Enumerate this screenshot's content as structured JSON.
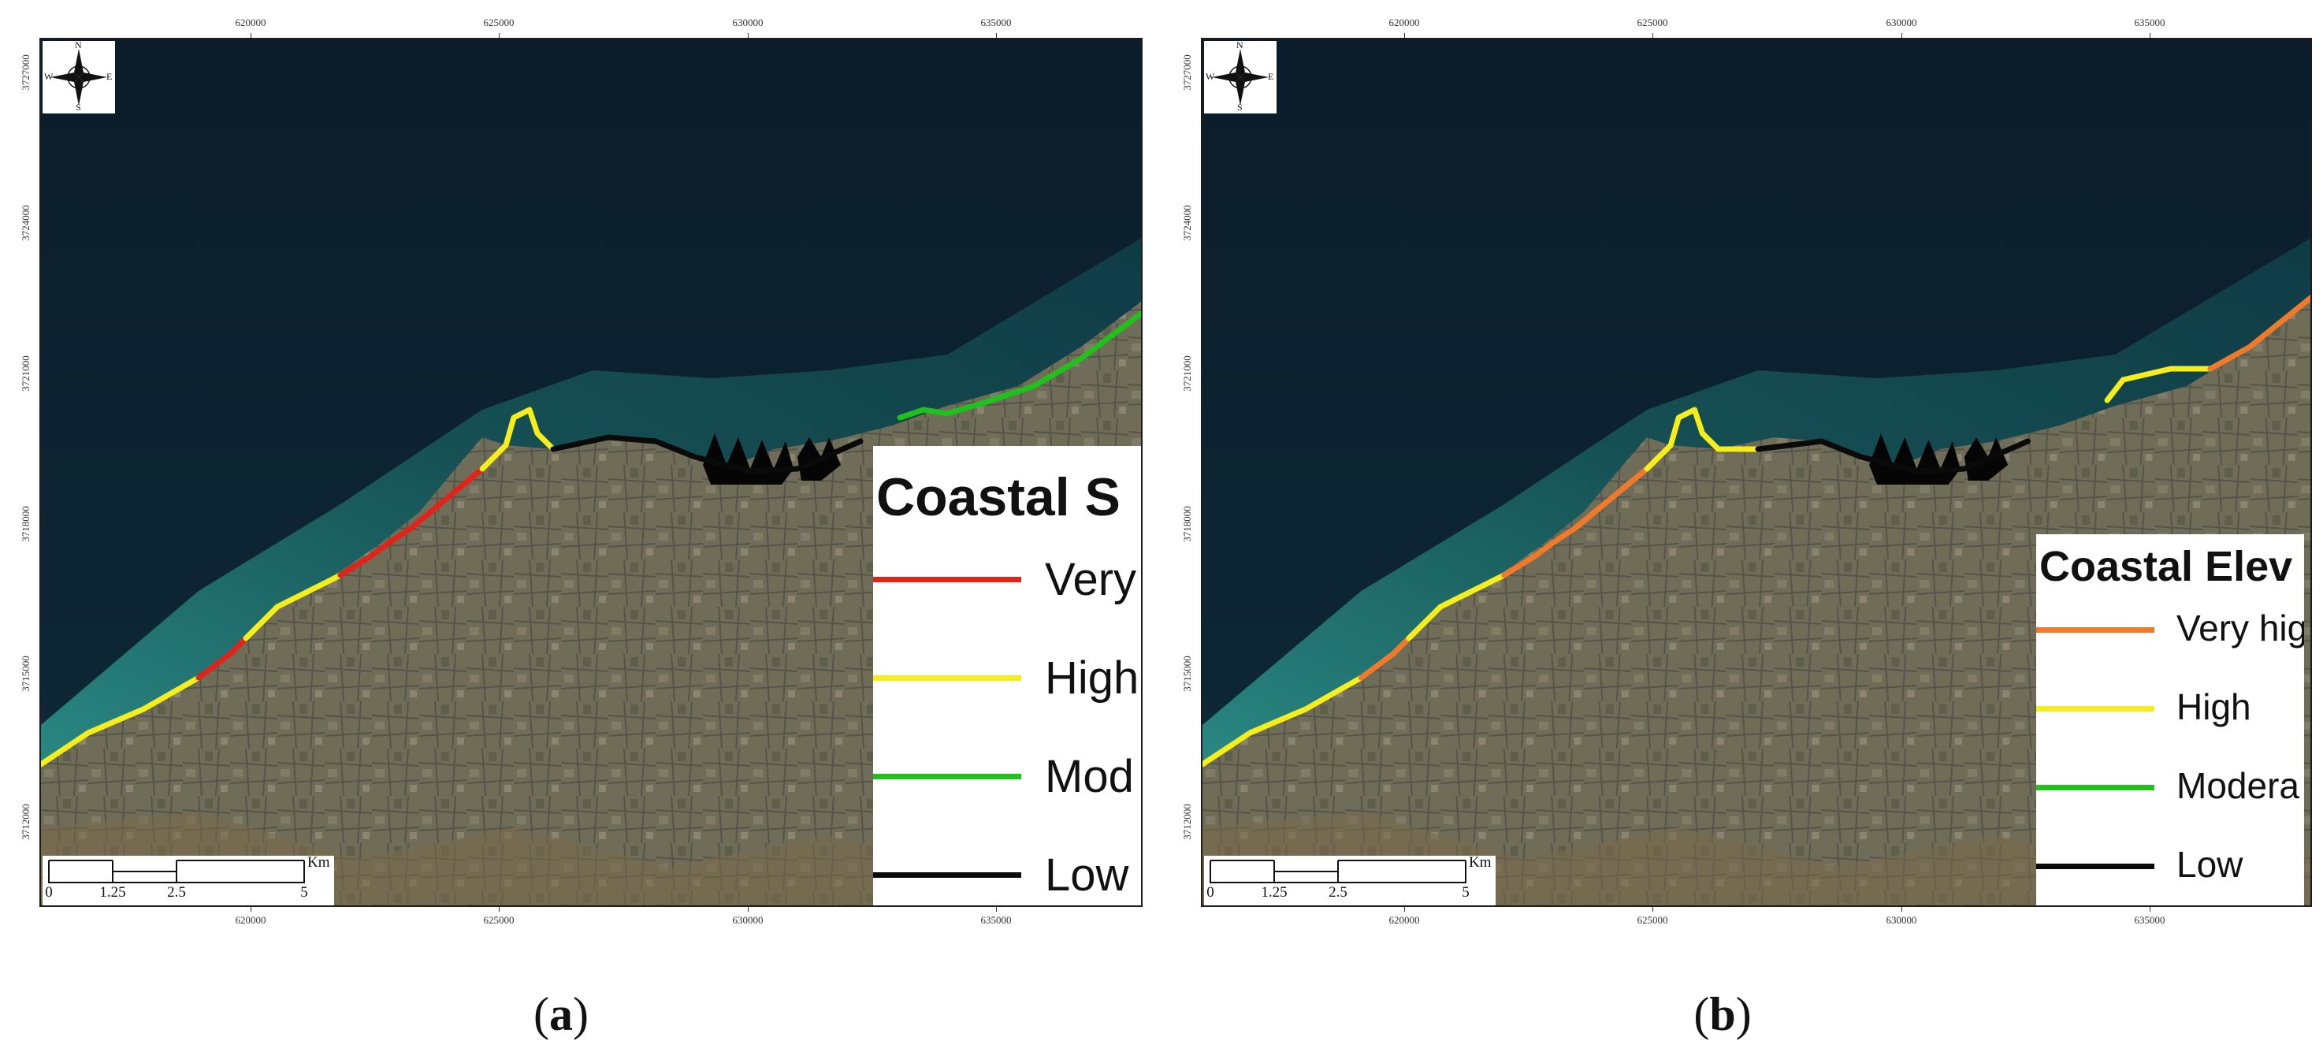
{
  "panels": [
    {
      "id": "a",
      "caption_label": "a",
      "legend": {
        "title": "Coastal S",
        "items": [
          {
            "label": "Very",
            "color": "#e2231a"
          },
          {
            "label": "High",
            "color": "#f6ee1c"
          },
          {
            "label": "Mod",
            "color": "#21c11d"
          },
          {
            "label": "Low",
            "color": "#0a0a0a"
          }
        ]
      },
      "coast_classes": [
        "#f6ee1c",
        "#e2231a",
        "#f6ee1c",
        "#e2231a",
        "#f6ee1c",
        "#0a0a0a",
        "#0a0a0a",
        "#21c11d"
      ]
    },
    {
      "id": "b",
      "caption_label": "b",
      "legend": {
        "title": "Coastal Elev",
        "items": [
          {
            "label": "Very hig",
            "color": "#f07a2a"
          },
          {
            "label": "High",
            "color": "#f6ee1c"
          },
          {
            "label": "Modera",
            "color": "#21c11d"
          },
          {
            "label": "Low",
            "color": "#0a0a0a"
          }
        ]
      },
      "coast_classes": [
        "#f6ee1c",
        "#f07a2a",
        "#f6ee1c",
        "#f07a2a",
        "#f6ee1c",
        "#0a0a0a",
        "#f6ee1c",
        "#f07a2a"
      ]
    }
  ],
  "grid": {
    "x_ticks": [
      "620000",
      "625000",
      "630000",
      "635000"
    ],
    "y_ticks": [
      "3727000",
      "3724000",
      "3721000",
      "3718000",
      "3715000",
      "3712000"
    ]
  },
  "north_arrow": {
    "n": "N",
    "s": "S",
    "e": "E",
    "w": "W",
    "icon": "compass-rose-icon"
  },
  "scale_bar": {
    "labels": [
      "0",
      "1.25",
      "2.5",
      "5"
    ],
    "unit": "Km"
  },
  "colors": {
    "sea": "#0c2231",
    "shallow": "#1b6e68",
    "land": "#6d6c55"
  }
}
